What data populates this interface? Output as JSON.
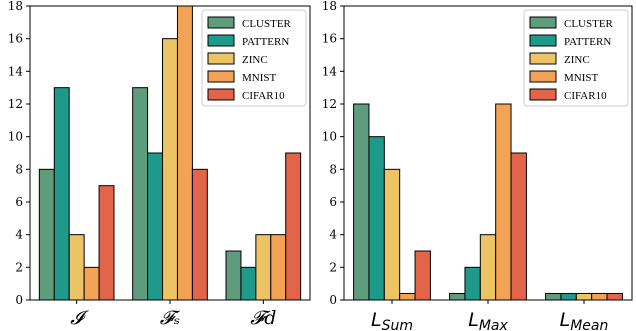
{
  "series_colors": {
    "CLUSTER": "#5f9c7e",
    "PATTERN": "#1f9a8a",
    "ZINC": "#ecc465",
    "MNIST": "#f3a356",
    "CIFAR10": "#e2654a"
  },
  "chart_data": [
    {
      "type": "bar",
      "categories": [
        "𝓘",
        "𝓕ₛ",
        "𝓕d"
      ],
      "series": [
        {
          "name": "CLUSTER",
          "values": [
            8,
            13,
            3
          ]
        },
        {
          "name": "PATTERN",
          "values": [
            13,
            9,
            2
          ]
        },
        {
          "name": "ZINC",
          "values": [
            4,
            16,
            4
          ]
        },
        {
          "name": "MNIST",
          "values": [
            2,
            18,
            4
          ]
        },
        {
          "name": "CIFAR10",
          "values": [
            7,
            8,
            9
          ]
        }
      ],
      "ylim": [
        0,
        18
      ],
      "yticks": [
        0,
        2,
        4,
        6,
        8,
        10,
        12,
        14,
        16,
        18
      ],
      "xlabel": "",
      "ylabel": "",
      "grid": false,
      "legend_position": "top-right"
    },
    {
      "type": "bar",
      "categories": [
        "L_Sum",
        "L_Max",
        "L_Mean"
      ],
      "category_labels": [
        {
          "base": "L",
          "sub": "Sum"
        },
        {
          "base": "L",
          "sub": "Max"
        },
        {
          "base": "L",
          "sub": "Mean"
        }
      ],
      "series": [
        {
          "name": "CLUSTER",
          "values": [
            12,
            0.4,
            0.4
          ]
        },
        {
          "name": "PATTERN",
          "values": [
            10,
            2,
            0.4
          ]
        },
        {
          "name": "ZINC",
          "values": [
            8,
            4,
            0.4
          ]
        },
        {
          "name": "MNIST",
          "values": [
            0.4,
            12,
            0.4
          ]
        },
        {
          "name": "CIFAR10",
          "values": [
            3,
            9,
            0.4
          ]
        }
      ],
      "ylim": [
        0,
        18
      ],
      "yticks": [
        0,
        2,
        4,
        6,
        8,
        10,
        12,
        14,
        16,
        18
      ],
      "xlabel": "",
      "ylabel": "",
      "grid": false,
      "legend_position": "top-right"
    }
  ]
}
